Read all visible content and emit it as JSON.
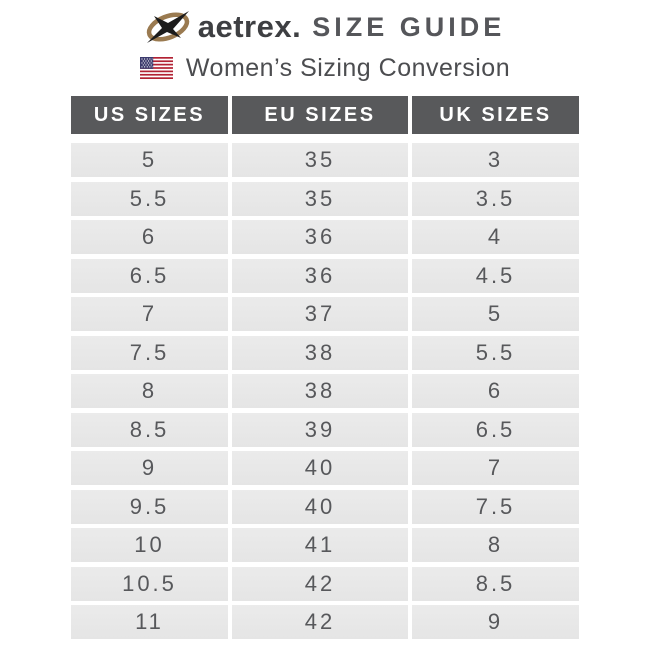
{
  "header": {
    "brand": "aetrex.",
    "title": "SIZE GUIDE"
  },
  "subtitle": {
    "text": "Women’s Sizing Conversion"
  },
  "icons": {
    "logo": "aetrex-swoosh-logo",
    "flag": "us-flag-icon"
  },
  "colors": {
    "header_bg": "#58595b",
    "header_text": "#ffffff",
    "row_bg": "#e8e8e8",
    "text_gray": "#57585b",
    "logo_ring": "#9a7a50",
    "logo_x": "#1c1c1c",
    "flag_red": "#b22234",
    "flag_blue": "#3c3b6e"
  },
  "chart_data": {
    "type": "table",
    "title": "aetrex. SIZE GUIDE",
    "subtitle": "Women’s Sizing Conversion",
    "columns": [
      "US SIZES",
      "EU SIZES",
      "UK SIZES"
    ],
    "rows": [
      [
        "5",
        "35",
        "3"
      ],
      [
        "5.5",
        "35",
        "3.5"
      ],
      [
        "6",
        "36",
        "4"
      ],
      [
        "6.5",
        "36",
        "4.5"
      ],
      [
        "7",
        "37",
        "5"
      ],
      [
        "7.5",
        "38",
        "5.5"
      ],
      [
        "8",
        "38",
        "6"
      ],
      [
        "8.5",
        "39",
        "6.5"
      ],
      [
        "9",
        "40",
        "7"
      ],
      [
        "9.5",
        "40",
        "7.5"
      ],
      [
        "10",
        "41",
        "8"
      ],
      [
        "10.5",
        "42",
        "8.5"
      ],
      [
        "11",
        "42",
        "9"
      ]
    ]
  }
}
